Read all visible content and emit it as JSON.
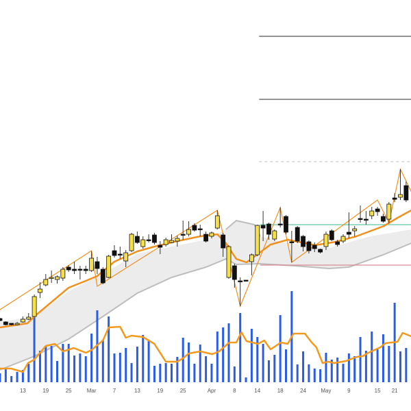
{
  "chart_data": {
    "type": "candlestick",
    "title": "",
    "price_unit_note": "",
    "colors": {
      "up": "#f5e04a",
      "down": "#111111",
      "ma": "#f0901e",
      "zigzag": "#f0901e",
      "volume": "#2b5ce6",
      "volume_ma": "#f39a1e",
      "band": "#e6e6e6",
      "band_edge": "#bdbdbd"
    },
    "x_ticks": [
      {
        "index": 4,
        "label": "13"
      },
      {
        "index": 8,
        "label": "19"
      },
      {
        "index": 12,
        "label": "25"
      },
      {
        "index": 16,
        "label": "Mar"
      },
      {
        "index": 20,
        "label": "7"
      },
      {
        "index": 24,
        "label": "13"
      },
      {
        "index": 28,
        "label": "19"
      },
      {
        "index": 32,
        "label": "25"
      },
      {
        "index": 37,
        "label": "Apr"
      },
      {
        "index": 41,
        "label": "8"
      },
      {
        "index": 45,
        "label": "14"
      },
      {
        "index": 49,
        "label": "18"
      },
      {
        "index": 53,
        "label": "24"
      },
      {
        "index": 57,
        "label": "May"
      },
      {
        "index": 61,
        "label": "9"
      },
      {
        "index": 66,
        "label": "15"
      },
      {
        "index": 69,
        "label": "21"
      }
    ],
    "candles_ohlc": [
      [
        135,
        136,
        131,
        132
      ],
      [
        130,
        131,
        125,
        126
      ],
      [
        128,
        128,
        125,
        126
      ],
      [
        126,
        130,
        125,
        128
      ],
      [
        130,
        138,
        129,
        134
      ],
      [
        134,
        143,
        133,
        137
      ],
      [
        138,
        170,
        137,
        167
      ],
      [
        173,
        188,
        165,
        178
      ],
      [
        184,
        200,
        182,
        192
      ],
      [
        194,
        205,
        187,
        195
      ],
      [
        192,
        198,
        186,
        196
      ],
      [
        194,
        210,
        190,
        207
      ],
      [
        210,
        213,
        203,
        206
      ],
      [
        207,
        218,
        200,
        205
      ],
      [
        207,
        212,
        192,
        206
      ],
      [
        207,
        212,
        200,
        205
      ],
      [
        205,
        233,
        203,
        223
      ],
      [
        218,
        225,
        200,
        208
      ],
      [
        207,
        210,
        185,
        187
      ],
      [
        195,
        228,
        194,
        226
      ],
      [
        234,
        242,
        224,
        227
      ],
      [
        229,
        240,
        222,
        228
      ],
      [
        219,
        235,
        210,
        231
      ],
      [
        234,
        260,
        232,
        258
      ],
      [
        255,
        262,
        244,
        246
      ],
      [
        240,
        255,
        237,
        250
      ],
      [
        250,
        258,
        246,
        249
      ],
      [
        257,
        260,
        243,
        246
      ],
      [
        242,
        248,
        229,
        239
      ],
      [
        243,
        253,
        240,
        250
      ],
      [
        246,
        258,
        245,
        249
      ],
      [
        248,
        256,
        240,
        252
      ],
      [
        258,
        278,
        250,
        257
      ],
      [
        258,
        277,
        255,
        265
      ],
      [
        271,
        274,
        262,
        264
      ],
      [
        266,
        272,
        255,
        265
      ],
      [
        258,
        262,
        246,
        248
      ],
      [
        255,
        262,
        252,
        260
      ],
      [
        267,
        293,
        265,
        285
      ],
      [
        257,
        260,
        225,
        238
      ],
      [
        195,
        242,
        193,
        240
      ],
      [
        212,
        215,
        180,
        192
      ],
      [
        190,
        195,
        153,
        189
      ],
      [
        191,
        191,
        189,
        190
      ],
      [
        218,
        230,
        198,
        228
      ],
      [
        228,
        272,
        226,
        271
      ],
      [
        271,
        292,
        248,
        267
      ],
      [
        273,
        275,
        250,
        258
      ],
      [
        251,
        265,
        248,
        263
      ],
      [
        273,
        297,
        268,
        272
      ],
      [
        284,
        286,
        258,
        261
      ],
      [
        247,
        263,
        217,
        246
      ],
      [
        268,
        270,
        245,
        248
      ],
      [
        255,
        257,
        233,
        240
      ],
      [
        247,
        249,
        230,
        234
      ],
      [
        242,
        246,
        232,
        237
      ],
      [
        236,
        237,
        230,
        232
      ],
      [
        240,
        262,
        235,
        258
      ],
      [
        263,
        265,
        248,
        250
      ],
      [
        247,
        250,
        240,
        243
      ],
      [
        248,
        258,
        245,
        255
      ],
      [
        261,
        290,
        252,
        258
      ],
      [
        263,
        270,
        255,
        266
      ],
      [
        281,
        300,
        275,
        280
      ],
      [
        280,
        292,
        272,
        279
      ],
      [
        285,
        298,
        280,
        292
      ],
      [
        295,
        298,
        285,
        291
      ],
      [
        284,
        288,
        275,
        277
      ],
      [
        280,
        305,
        274,
        302
      ],
      [
        311,
        318,
        305,
        309
      ],
      [
        312,
        353,
        308,
        316
      ],
      [
        329,
        335,
        305,
        308
      ]
    ],
    "moving_average": [
      [
        0,
        122
      ],
      [
        4.8,
        128
      ],
      [
        6,
        138
      ],
      [
        8,
        152
      ],
      [
        12,
        180
      ],
      [
        15,
        190
      ],
      [
        17,
        197
      ],
      [
        20,
        218
      ],
      [
        24,
        233
      ],
      [
        27,
        240
      ],
      [
        31,
        248
      ],
      [
        35,
        255
      ],
      [
        38,
        258
      ],
      [
        39.5,
        245
      ],
      [
        41.3,
        222
      ],
      [
        43.1,
        217
      ],
      [
        44.9,
        228
      ],
      [
        47.3,
        243
      ],
      [
        50.3,
        250
      ],
      [
        52.7,
        246
      ],
      [
        55.1,
        242
      ],
      [
        58.7,
        247
      ],
      [
        62.3,
        255
      ],
      [
        67.1,
        270
      ],
      [
        69.5,
        282
      ],
      [
        71.9,
        293
      ]
    ],
    "band_upper": [
      [
        0,
        130
      ],
      [
        6,
        138
      ],
      [
        12,
        175
      ],
      [
        18,
        200
      ],
      [
        24,
        230
      ],
      [
        30,
        240
      ],
      [
        36,
        250
      ],
      [
        39.5,
        265
      ],
      [
        41.3,
        278
      ],
      [
        44.5,
        272
      ],
      [
        45.5,
        255
      ],
      [
        50.3,
        245
      ],
      [
        57.5,
        238
      ],
      [
        64.7,
        255
      ],
      [
        71.9,
        265
      ]
    ],
    "band_lower": [
      [
        0,
        60
      ],
      [
        6,
        80
      ],
      [
        12,
        105
      ],
      [
        18,
        138
      ],
      [
        24,
        172
      ],
      [
        30,
        195
      ],
      [
        36,
        210
      ],
      [
        39.5,
        222
      ],
      [
        41.3,
        214
      ],
      [
        45.5,
        215
      ],
      [
        51.5,
        212
      ],
      [
        57.5,
        208
      ],
      [
        61,
        210
      ],
      [
        67,
        228
      ],
      [
        71.9,
        245
      ]
    ],
    "zigzag": [
      [
        0,
        148
      ],
      [
        16,
        234
      ],
      [
        17,
        182
      ],
      [
        38,
        293
      ],
      [
        42,
        153
      ],
      [
        49,
        297
      ],
      [
        51,
        217
      ],
      [
        66,
        308
      ],
      [
        68,
        275
      ],
      [
        70,
        353
      ],
      [
        71.9,
        320
      ]
    ],
    "horizontal_levels": [
      {
        "price": 547,
        "from_index": 45.3,
        "color": "#555555",
        "style": "solid"
      },
      {
        "price": 455,
        "from_index": 45.3,
        "color": "#555555",
        "style": "solid"
      },
      {
        "price": 364,
        "from_index": 45.3,
        "color": "#cccccc",
        "style": "dashed"
      },
      {
        "price": 272,
        "from_index": 45.5,
        "color": "#5cc7a8",
        "style": "solid"
      },
      {
        "price": 213,
        "from_index": 45.5,
        "color": "#d98a96",
        "style": "solid"
      }
    ],
    "volume": [
      13,
      20,
      9,
      15,
      18,
      27,
      95,
      46,
      53,
      53,
      31,
      56,
      56,
      39,
      42,
      38,
      71,
      105,
      62,
      96,
      42,
      43,
      50,
      28,
      52,
      69,
      61,
      24,
      27,
      28,
      27,
      37,
      65,
      58,
      27,
      55,
      38,
      27,
      74,
      80,
      86,
      23,
      101,
      7,
      78,
      66,
      56,
      32,
      40,
      98,
      48,
      133,
      26,
      45,
      26,
      20,
      19,
      43,
      33,
      36,
      27,
      42,
      38,
      66,
      46,
      74,
      48,
      70,
      53,
      116,
      45,
      50
    ],
    "volume_ma": [
      [
        0,
        20
      ],
      [
        1.9,
        20
      ],
      [
        4,
        15
      ],
      [
        4.9,
        28
      ],
      [
        6,
        33
      ],
      [
        8,
        53
      ],
      [
        9.6,
        56
      ],
      [
        11,
        45
      ],
      [
        12.9,
        50
      ],
      [
        15,
        43
      ],
      [
        16,
        47
      ],
      [
        18,
        61
      ],
      [
        19,
        80
      ],
      [
        21,
        81
      ],
      [
        22,
        65
      ],
      [
        23,
        68
      ],
      [
        25,
        66
      ],
      [
        27,
        56
      ],
      [
        29,
        30
      ],
      [
        31,
        30
      ],
      [
        32,
        35
      ],
      [
        33,
        42
      ],
      [
        35,
        45
      ],
      [
        37.1,
        41
      ],
      [
        38.3,
        45
      ],
      [
        40.1,
        58
      ],
      [
        41.3,
        58
      ],
      [
        42.2,
        73
      ],
      [
        43.1,
        60
      ],
      [
        45.1,
        56
      ],
      [
        46.2,
        61
      ],
      [
        47.3,
        48
      ],
      [
        49.1,
        58
      ],
      [
        50.3,
        56
      ],
      [
        51.3,
        71
      ],
      [
        53.3,
        71
      ],
      [
        54.5,
        58
      ],
      [
        55.3,
        51
      ],
      [
        56.4,
        28
      ],
      [
        57.4,
        30
      ],
      [
        58.4,
        28
      ],
      [
        60.5,
        31
      ],
      [
        61.4,
        34
      ],
      [
        62.4,
        37
      ],
      [
        63.4,
        38
      ],
      [
        64.4,
        43
      ],
      [
        66.5,
        51
      ],
      [
        67.4,
        57
      ],
      [
        69.5,
        59
      ],
      [
        70.4,
        72
      ],
      [
        71.9,
        67
      ]
    ]
  }
}
